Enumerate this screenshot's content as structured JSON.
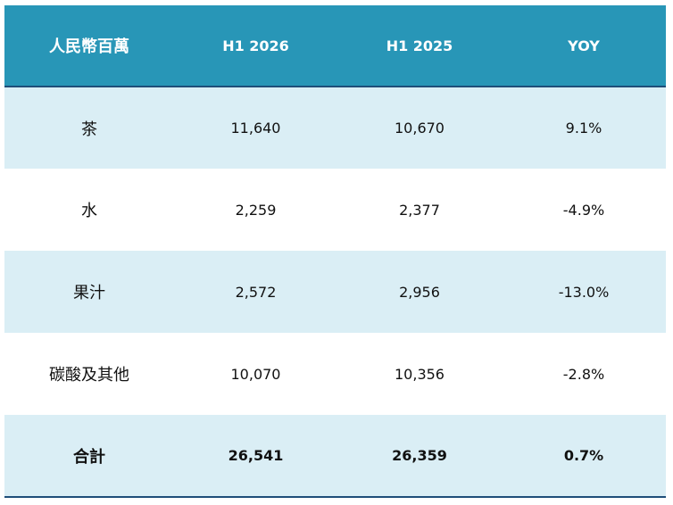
{
  "table": {
    "headers": [
      "人民幣百萬",
      "H1 2026",
      "H1 2025",
      "YOY"
    ],
    "rows": [
      {
        "label": "茶",
        "h1_2026": "11,640",
        "h1_2025": "10,670",
        "yoy": "9.1%"
      },
      {
        "label": "水",
        "h1_2026": "2,259",
        "h1_2025": "2,377",
        "yoy": "-4.9%"
      },
      {
        "label": "果汁",
        "h1_2026": "2,572",
        "h1_2025": "2,956",
        "yoy": "-13.0%"
      },
      {
        "label": "碳酸及其他",
        "h1_2026": "10,070",
        "h1_2025": "10,356",
        "yoy": "-2.8%"
      }
    ],
    "total": {
      "label": "合計",
      "h1_2026": "26,541",
      "h1_2025": "26,359",
      "yoy": "0.7%"
    }
  },
  "colors": {
    "header_bg": "#2896b7",
    "shaded_row_bg": "#daeef5",
    "rule": "#1f4e79"
  }
}
